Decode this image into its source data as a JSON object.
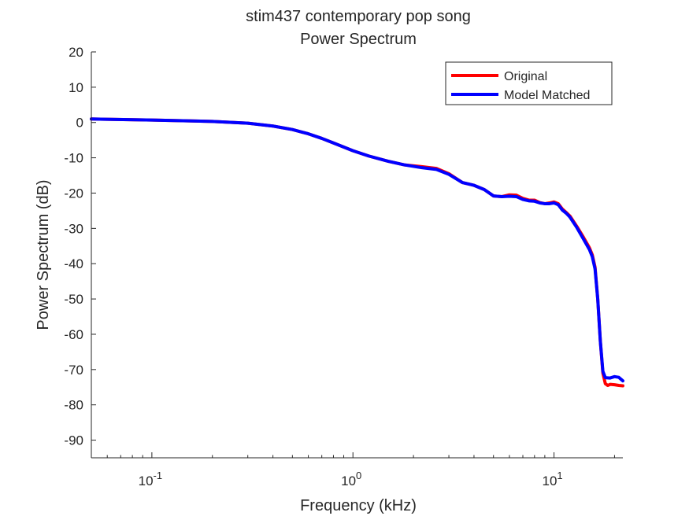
{
  "figure": {
    "title_line1": "stim437 contemporary pop song",
    "title_line2": "Power Spectrum"
  },
  "chart_data": {
    "type": "line",
    "title": "stim437 contemporary pop song\nPower Spectrum",
    "xlabel": "Frequency (kHz)",
    "ylabel": "Power Spectrum (dB)",
    "xscale": "log",
    "xlim": [
      0.05,
      22
    ],
    "ylim": [
      -95,
      20
    ],
    "x_ticks": [
      {
        "value": 0.1,
        "base": "10",
        "exp": "-1"
      },
      {
        "value": 1,
        "base": "10",
        "exp": "0"
      },
      {
        "value": 10,
        "base": "10",
        "exp": "1"
      }
    ],
    "y_ticks": [
      20,
      10,
      0,
      -10,
      -20,
      -30,
      -40,
      -50,
      -60,
      -70,
      -80,
      -90
    ],
    "grid": false,
    "legend_position": "top-right",
    "series": [
      {
        "name": "Original",
        "color": "#ff0000",
        "points": [
          [
            0.05,
            1.0
          ],
          [
            0.1,
            0.7
          ],
          [
            0.2,
            0.3
          ],
          [
            0.3,
            -0.2
          ],
          [
            0.4,
            -1.0
          ],
          [
            0.5,
            -2.0
          ],
          [
            0.6,
            -3.2
          ],
          [
            0.7,
            -4.5
          ],
          [
            0.8,
            -5.8
          ],
          [
            1.0,
            -8.0
          ],
          [
            1.2,
            -9.5
          ],
          [
            1.5,
            -11.0
          ],
          [
            1.8,
            -12.0
          ],
          [
            2.2,
            -12.5
          ],
          [
            2.6,
            -13.0
          ],
          [
            3.0,
            -14.5
          ],
          [
            3.5,
            -17.0
          ],
          [
            4.0,
            -17.8
          ],
          [
            4.5,
            -19.0
          ],
          [
            5.0,
            -20.8
          ],
          [
            5.5,
            -21.0
          ],
          [
            6.0,
            -20.5
          ],
          [
            6.5,
            -20.6
          ],
          [
            7.0,
            -21.5
          ],
          [
            7.5,
            -22.0
          ],
          [
            8.0,
            -22.0
          ],
          [
            8.5,
            -22.7
          ],
          [
            9.0,
            -23.0
          ],
          [
            9.5,
            -22.8
          ],
          [
            10.0,
            -22.5
          ],
          [
            10.5,
            -23.0
          ],
          [
            11.0,
            -24.5
          ],
          [
            11.5,
            -25.5
          ],
          [
            12.0,
            -26.5
          ],
          [
            13.0,
            -29.5
          ],
          [
            14.0,
            -32.5
          ],
          [
            15.0,
            -35.5
          ],
          [
            15.5,
            -37.5
          ],
          [
            16.0,
            -41.0
          ],
          [
            16.5,
            -50.0
          ],
          [
            17.0,
            -62.0
          ],
          [
            17.5,
            -71.0
          ],
          [
            18.0,
            -74.0
          ],
          [
            18.5,
            -74.5
          ],
          [
            19.0,
            -74.2
          ],
          [
            20.0,
            -74.3
          ],
          [
            21.0,
            -74.5
          ],
          [
            22.0,
            -74.6
          ]
        ]
      },
      {
        "name": "Model Matched",
        "color": "#0000ff",
        "points": [
          [
            0.05,
            1.0
          ],
          [
            0.1,
            0.7
          ],
          [
            0.2,
            0.3
          ],
          [
            0.3,
            -0.2
          ],
          [
            0.4,
            -1.0
          ],
          [
            0.5,
            -2.0
          ],
          [
            0.6,
            -3.2
          ],
          [
            0.7,
            -4.5
          ],
          [
            0.8,
            -5.8
          ],
          [
            1.0,
            -8.0
          ],
          [
            1.2,
            -9.5
          ],
          [
            1.5,
            -11.0
          ],
          [
            1.8,
            -12.0
          ],
          [
            2.2,
            -12.8
          ],
          [
            2.6,
            -13.3
          ],
          [
            3.0,
            -14.7
          ],
          [
            3.5,
            -17.0
          ],
          [
            4.0,
            -17.8
          ],
          [
            4.5,
            -19.0
          ],
          [
            5.0,
            -20.8
          ],
          [
            5.5,
            -21.0
          ],
          [
            6.0,
            -20.9
          ],
          [
            6.5,
            -21.0
          ],
          [
            7.0,
            -21.8
          ],
          [
            7.5,
            -22.2
          ],
          [
            8.0,
            -22.3
          ],
          [
            8.5,
            -22.8
          ],
          [
            9.0,
            -23.0
          ],
          [
            9.5,
            -23.0
          ],
          [
            10.0,
            -22.8
          ],
          [
            10.5,
            -23.3
          ],
          [
            11.0,
            -24.8
          ],
          [
            11.5,
            -25.7
          ],
          [
            12.0,
            -26.8
          ],
          [
            13.0,
            -29.8
          ],
          [
            14.0,
            -33.0
          ],
          [
            15.0,
            -36.0
          ],
          [
            15.5,
            -38.0
          ],
          [
            16.0,
            -41.5
          ],
          [
            16.5,
            -50.0
          ],
          [
            17.0,
            -62.0
          ],
          [
            17.5,
            -70.5
          ],
          [
            18.0,
            -72.3
          ],
          [
            19.0,
            -72.4
          ],
          [
            20.0,
            -72.0
          ],
          [
            21.0,
            -72.2
          ],
          [
            22.0,
            -73.2
          ]
        ]
      }
    ]
  }
}
